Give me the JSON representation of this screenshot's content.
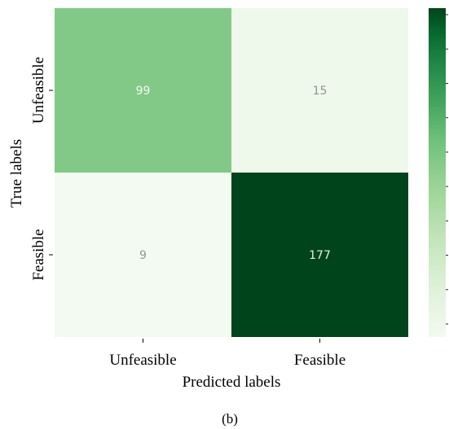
{
  "chart_data": {
    "type": "heatmap",
    "x_categories": [
      "Unfeasible",
      "Feasible"
    ],
    "y_categories": [
      "Unfeasible",
      "Feasible"
    ],
    "values": [
      [
        99,
        15
      ],
      [
        9,
        177
      ]
    ],
    "xlabel": "Predicted labels",
    "ylabel": "True labels",
    "colormap": "Greens",
    "low_color": "#f3faf1",
    "high_color": "#00441b",
    "vmin": 9,
    "vmax": 177,
    "colorbar": true,
    "colorbar_tick_labels": false
  },
  "caption": "(b)"
}
